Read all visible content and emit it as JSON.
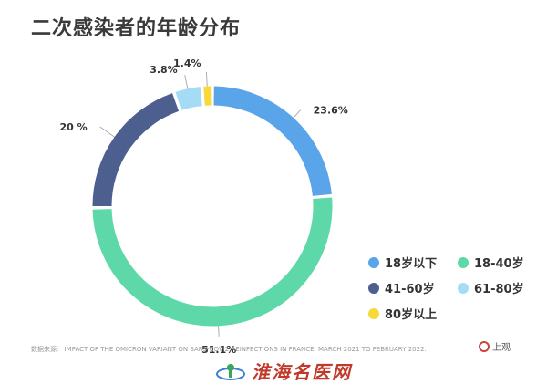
{
  "chart_data": {
    "type": "pie",
    "title": "二次感染者的年龄分布",
    "categories": [
      "18岁以下",
      "18-40岁",
      "41-60岁",
      "61-80岁",
      "80岁以上"
    ],
    "values": [
      23.6,
      51.1,
      20,
      3.8,
      1.4
    ],
    "data_labels": [
      "23.6%",
      "51.1%",
      "20 %",
      "3.8%",
      "1.4%"
    ],
    "colors": [
      "#5aa4ea",
      "#5ed8a8",
      "#4d5f8f",
      "#a5dcf5",
      "#f7d93a"
    ],
    "donut": true,
    "start_angle_deg": 0,
    "legend": "bottom-right"
  },
  "source": {
    "label": "数据来源:",
    "text": "IMPACT OF THE OMICRON VARIANT ON SARS-COV-2 REINFECTIONS IN FRANCE, MARCH 2021 TO FEBRUARY 2022."
  },
  "logos": {
    "top_right": "上观",
    "bottom": "淮海名医网"
  }
}
